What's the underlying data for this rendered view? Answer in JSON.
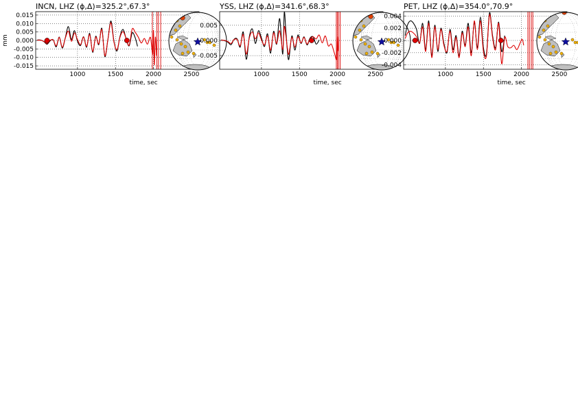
{
  "chart_data": [
    {
      "type": "line",
      "title": "INCN, LHZ (ϕ,Δ)=325.2°,67.3°",
      "xlabel": "time, sec",
      "ylabel": "mm",
      "xlim": [
        450,
        2600
      ],
      "ylim": [
        -0.017,
        0.017
      ],
      "xticks": [
        1000,
        1500,
        2000,
        2500
      ],
      "xtick_labels": [
        "1000",
        "1500",
        "2000",
        "2500"
      ],
      "yticks": [
        0.015,
        0.01,
        0.005,
        0.0,
        -0.005,
        -0.01,
        -0.015
      ],
      "ytick_labels": [
        "0.015",
        "0.010",
        "0.005",
        "0.000",
        "-0.005",
        "-0.010",
        "-0.015"
      ],
      "grid": true,
      "series": [
        {
          "color": "#000000",
          "x": [
            470,
            520,
            560,
            600,
            640,
            680,
            720,
            760,
            800,
            840,
            880,
            920,
            960,
            1000,
            1040,
            1080,
            1120,
            1160,
            1200,
            1240,
            1280,
            1320,
            1360,
            1400,
            1440,
            1480,
            1520,
            1560,
            1600,
            1640,
            1680,
            1720,
            1760,
            1790
          ],
          "y": [
            0.0003,
            0.0002,
            -0.0008,
            -0.0022,
            -0.0002,
            0.0004,
            -0.0038,
            0.002,
            -0.0045,
            0.0016,
            0.0082,
            0.0005,
            0.0058,
            -0.0005,
            -0.003,
            0.0022,
            -0.004,
            0.0042,
            -0.007,
            0.0025,
            -0.0025,
            0.0072,
            -0.0095,
            0.0005,
            0.0115,
            -0.0005,
            -0.0062,
            0.0025,
            0.0065,
            0.001,
            -0.0032,
            0.0045,
            0.0015,
            -0.0035
          ]
        },
        {
          "color": "#dd0000",
          "x": [
            470,
            520,
            560,
            600,
            640,
            680,
            720,
            760,
            800,
            840,
            880,
            920,
            960,
            1000,
            1040,
            1080,
            1120,
            1160,
            1200,
            1240,
            1280,
            1320,
            1360,
            1400,
            1440,
            1480,
            1520,
            1560,
            1600,
            1640,
            1680,
            1720,
            1760,
            1800,
            1840,
            1880,
            1920,
            1960,
            1990,
            2000,
            2010,
            2025,
            2040
          ],
          "y": [
            0.0002,
            0.0001,
            -0.0006,
            -0.0018,
            0.0001,
            0.0003,
            -0.0032,
            0.0018,
            -0.004,
            0.0014,
            0.0055,
            -0.0005,
            0.0045,
            0.0005,
            -0.0025,
            0.002,
            -0.0035,
            0.0035,
            -0.0065,
            0.002,
            -0.002,
            0.0065,
            -0.009,
            0.0005,
            0.0105,
            -0.001,
            -0.0055,
            0.002,
            0.0052,
            0.0012,
            -0.0028,
            0.0068,
            0.0048,
            0.002,
            -0.0015,
            0.0012,
            -0.0022,
            0.0018,
            -0.0082,
            0.006,
            -0.0145,
            0.002,
            -0.009
          ]
        }
      ],
      "markers": [
        {
          "x": 600,
          "y": 0.0,
          "color": "#dd0000"
        },
        {
          "x": 1650,
          "y": 0.0,
          "color": "#dd0000"
        }
      ],
      "vlines": [
        1985,
        2045,
        2065,
        2095
      ]
    },
    {
      "type": "line",
      "title": "YSS, LHZ (ϕ,Δ)=341.6°,68.3°",
      "xlabel": "time, sec",
      "ylabel": "",
      "xlim": [
        450,
        2600
      ],
      "ylim": [
        -0.0095,
        0.0095
      ],
      "xticks": [
        1000,
        1500,
        2000,
        2500
      ],
      "xtick_labels": [
        "1000",
        "1500",
        "2000",
        "2500"
      ],
      "yticks": [
        0.005,
        0.0,
        -0.005
      ],
      "ytick_labels": [
        "0.005",
        "0.000",
        "-0.005"
      ],
      "grid": true,
      "series": [
        {
          "color": "#000000",
          "x": [
            470,
            520,
            560,
            600,
            640,
            680,
            720,
            760,
            800,
            840,
            880,
            920,
            960,
            1000,
            1040,
            1080,
            1120,
            1160,
            1200,
            1240,
            1280,
            1300,
            1320,
            1340,
            1360,
            1400,
            1440,
            1480,
            1520,
            1560,
            1600,
            1640,
            1680,
            1720,
            1760
          ],
          "y": [
            0.0002,
            -0.0001,
            -0.0006,
            -0.0014,
            0.0004,
            0.0005,
            -0.0022,
            0.0028,
            -0.0062,
            0.0012,
            0.0038,
            -0.001,
            0.0032,
            0.0008,
            -0.002,
            0.0022,
            -0.0042,
            0.003,
            -0.0012,
            0.0072,
            -0.0045,
            0.0092,
            0.0035,
            -0.003,
            -0.0062,
            0.0015,
            -0.0032,
            0.0018,
            -0.001,
            0.0012,
            -0.0015,
            0.0008,
            0.0012,
            -0.0012,
            0.0002
          ]
        },
        {
          "color": "#dd0000",
          "x": [
            470,
            520,
            560,
            600,
            640,
            680,
            720,
            760,
            800,
            840,
            880,
            920,
            960,
            1000,
            1040,
            1080,
            1120,
            1160,
            1200,
            1240,
            1280,
            1300,
            1320,
            1340,
            1360,
            1400,
            1440,
            1480,
            1520,
            1560,
            1600,
            1640,
            1680,
            1720,
            1760,
            1800,
            1840,
            1880,
            1920,
            1960,
            1990,
            2000,
            2010
          ],
          "y": [
            0.0001,
            0.0,
            -0.0004,
            -0.001,
            0.0003,
            0.0003,
            -0.0018,
            0.002,
            -0.0045,
            0.0008,
            0.0028,
            0.0005,
            0.0025,
            0.0002,
            -0.0015,
            0.0015,
            -0.0032,
            0.0025,
            -0.001,
            0.0032,
            -0.003,
            0.0045,
            0.0018,
            -0.0022,
            -0.0045,
            0.001,
            -0.0022,
            0.0012,
            -0.0008,
            0.001,
            -0.0012,
            0.0006,
            0.0012,
            0.0005,
            0.0018,
            -0.0008,
            0.0015,
            -0.0018,
            -0.0012,
            -0.0042,
            -0.0062,
            0.0012,
            -0.0035
          ]
        }
      ],
      "markers": [
        {
          "x": 1660,
          "y": 0.0,
          "color": "#dd0000"
        }
      ],
      "vlines": [
        1985,
        2000,
        2015,
        2035
      ]
    },
    {
      "type": "line",
      "title": "PET, LHZ (ϕ,Δ)=354.0°,70.9°",
      "xlabel": "time, sec",
      "ylabel": "",
      "xlim": [
        450,
        2600
      ],
      "ylim": [
        -0.0047,
        0.0047
      ],
      "xticks": [
        1000,
        1500,
        2000,
        2500
      ],
      "xtick_labels": [
        "1000",
        "1500",
        "2000",
        "2500"
      ],
      "yticks": [
        0.004,
        0.002,
        0.0,
        -0.002,
        -0.004
      ],
      "ytick_labels": [
        "0.004",
        "0.002",
        "0.000",
        "-0.002",
        "-0.004"
      ],
      "grid": true,
      "series": [
        {
          "color": "#000000",
          "x": [
            470,
            500,
            540,
            580,
            620,
            660,
            700,
            740,
            780,
            820,
            860,
            900,
            940,
            980,
            1020,
            1060,
            1100,
            1140,
            1180,
            1220,
            1260,
            1300,
            1340,
            1380,
            1420,
            1460,
            1500,
            1540,
            1580,
            1620,
            1660,
            1700,
            1740,
            1780
          ],
          "y": [
            0.0008,
            0.0025,
            0.0032,
            0.0028,
            0.0018,
            -0.0005,
            0.0028,
            -0.0015,
            0.0032,
            -0.0025,
            0.0025,
            -0.0018,
            0.002,
            -0.0005,
            -0.002,
            0.0018,
            -0.0015,
            0.0008,
            -0.0025,
            0.0015,
            -0.0008,
            0.0028,
            -0.002,
            0.003,
            -0.0012,
            0.0038,
            -0.0012,
            -0.0022,
            0.0045,
            0.0008,
            -0.0012,
            0.003,
            -0.0018,
            0.0008
          ]
        },
        {
          "color": "#dd0000",
          "x": [
            470,
            500,
            540,
            580,
            620,
            660,
            700,
            740,
            780,
            820,
            860,
            900,
            940,
            980,
            1020,
            1060,
            1100,
            1140,
            1180,
            1220,
            1260,
            1300,
            1340,
            1380,
            1420,
            1460,
            1500,
            1540,
            1580,
            1620,
            1660,
            1700,
            1740,
            1780,
            1820,
            1860,
            1900,
            1940,
            1980,
            2010,
            2030
          ],
          "y": [
            0.0003,
            0.0012,
            0.0015,
            0.0012,
            0.0006,
            -0.0004,
            0.0022,
            -0.0018,
            0.0028,
            -0.0028,
            0.0022,
            -0.0015,
            0.0018,
            -0.0008,
            -0.0018,
            0.0015,
            -0.002,
            0.0005,
            -0.0028,
            0.0012,
            -0.001,
            0.0022,
            -0.0025,
            0.0032,
            -0.0015,
            0.0032,
            -0.0018,
            -0.0025,
            0.0042,
            0.0005,
            -0.0015,
            0.0028,
            -0.0038,
            0.0005,
            -0.001,
            -0.0012,
            -0.0008,
            -0.0015,
            -0.0005,
            0.0002,
            -0.0008
          ]
        }
      ],
      "markers": [
        {
          "x": 600,
          "y": 0.0,
          "color": "#dd0000"
        },
        {
          "x": 1730,
          "y": 0.0,
          "color": "#dd0000"
        }
      ],
      "vlines": [
        2085,
        2105,
        2130,
        2150
      ]
    }
  ],
  "insets": {
    "globe_fill": "#ffffff",
    "land_fill": "#c0c0c0",
    "station_color": "#f0b000",
    "highlight_color": "#e04000",
    "epicenter_color": "#1010a0"
  }
}
